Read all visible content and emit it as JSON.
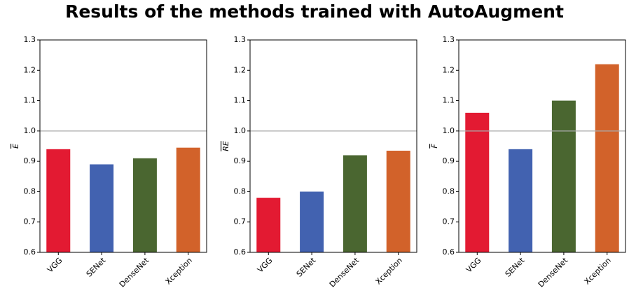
{
  "title": "Results of the methods trained with AutoAugment",
  "chart_data": [
    {
      "type": "bar",
      "categories": [
        "VGG",
        "SENet",
        "DenseNet",
        "Xception"
      ],
      "values": [
        0.94,
        0.89,
        0.91,
        0.945
      ],
      "colors": [
        "#e31a32",
        "#4262b0",
        "#4a6630",
        "#d2622a"
      ],
      "ylabel": "E",
      "ylim": [
        0.6,
        1.3
      ],
      "yticks": [
        0.6,
        0.7,
        0.8,
        0.9,
        {
          "value": 1,
          "label": "1.0"
        },
        1.1,
        1.2,
        1.3
      ],
      "hline": 1
    },
    {
      "type": "bar",
      "categories": [
        "VGG",
        "SENet",
        "DenseNet",
        "Xception"
      ],
      "values": [
        0.78,
        0.8,
        0.92,
        0.935
      ],
      "colors": [
        "#e31a32",
        "#4262b0",
        "#4a6630",
        "#d2622a"
      ],
      "ylabel": "RE",
      "ylim": [
        0.6,
        1.3
      ],
      "yticks": [
        0.6,
        0.7,
        0.8,
        0.9,
        {
          "value": 1,
          "label": "1.0"
        },
        1.1,
        1.2,
        1.3
      ],
      "hline": 1
    },
    {
      "type": "bar",
      "categories": [
        "VGG",
        "SENet",
        "DenseNet",
        "Xception"
      ],
      "values": [
        1.06,
        0.94,
        1.1,
        1.22
      ],
      "colors": [
        "#e31a32",
        "#4262b0",
        "#4a6630",
        "#d2622a"
      ],
      "ylabel": "F",
      "ylim": [
        0.6,
        1.3
      ],
      "yticks": [
        0.6,
        0.7,
        0.8,
        0.9,
        {
          "value": 1,
          "label": "1.0"
        },
        1.1,
        1.2,
        1.3
      ],
      "hline": 1
    }
  ]
}
